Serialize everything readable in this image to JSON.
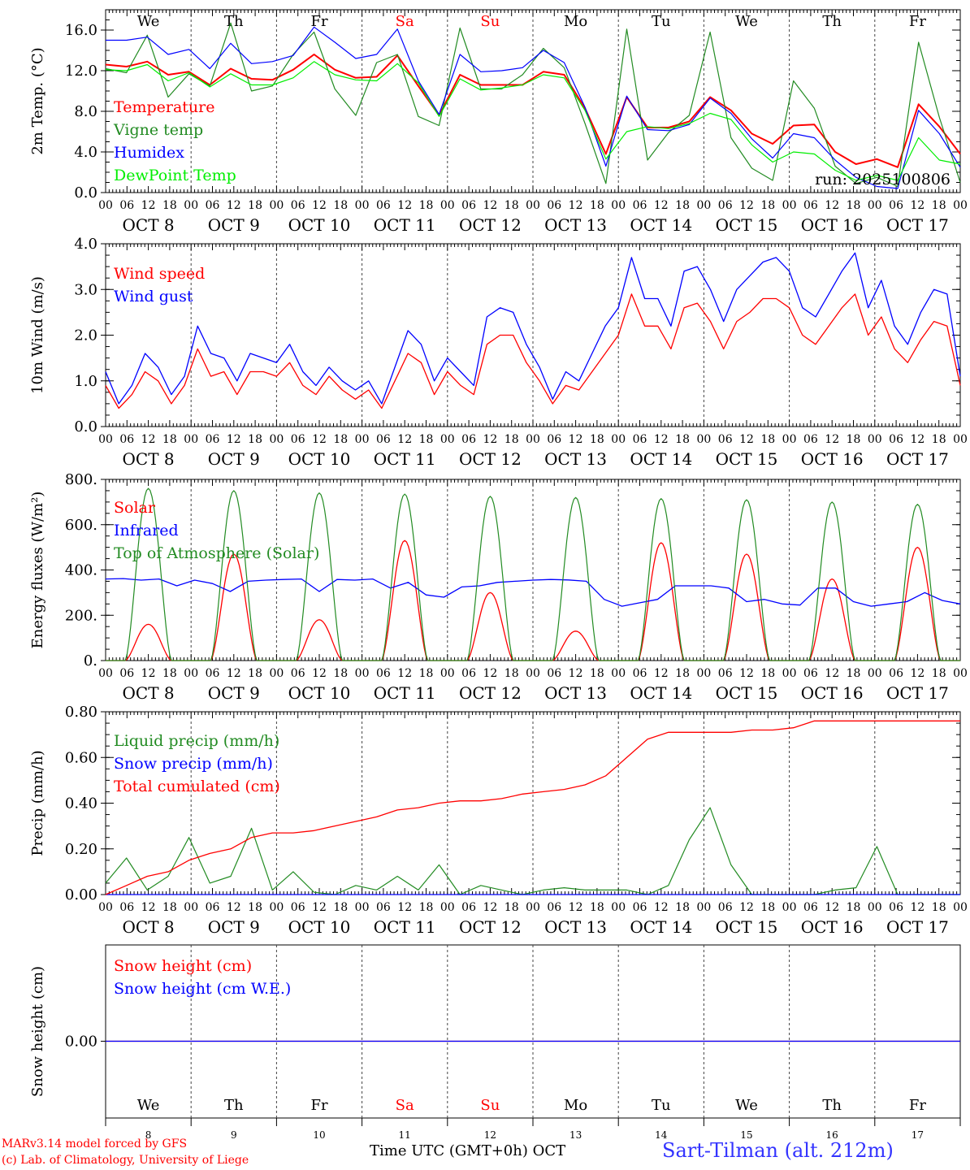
{
  "chart_data": [
    {
      "type": "line",
      "ylabel": "2m Temp. (°C)",
      "ylim": [
        0,
        18
      ],
      "yticks": [
        0.0,
        4.0,
        8.0,
        12.0,
        16.0
      ],
      "ytick_labels": [
        "0.0",
        "4.0",
        "8.0",
        "12.0",
        "16.0"
      ],
      "day_labels": [
        "We",
        "Th",
        "Fr",
        "Sa",
        "Su",
        "Mo",
        "Tu",
        "We",
        "Th",
        "Fr"
      ],
      "day_label_colors": [
        "#000000",
        "#000000",
        "#000000",
        "#ff0000",
        "#ff0000",
        "#000000",
        "#000000",
        "#000000",
        "#000000",
        "#000000"
      ],
      "annotation": "run: 2025100806",
      "legend_position": "top-left",
      "x_step_hours": 6,
      "series": [
        {
          "name": "Temperature",
          "color": "#ff0000",
          "values": [
            12.6,
            12.4,
            12.9,
            11.6,
            11.9,
            10.6,
            12.2,
            11.2,
            11.1,
            12.1,
            13.6,
            12.1,
            11.3,
            11.4,
            13.5,
            10.5,
            7.6,
            11.6,
            10.6,
            10.6,
            10.6,
            11.9,
            11.6,
            8.3,
            3.8,
            9.4,
            6.4,
            6.4,
            7.0,
            9.4,
            8.1,
            5.8,
            4.8,
            6.6,
            6.7,
            4.0,
            2.8,
            3.3,
            2.5,
            8.7,
            6.5,
            3.8
          ]
        },
        {
          "name": "Vigne temp",
          "color": "#228b22",
          "values": [
            12.2,
            11.8,
            15.5,
            9.4,
            11.7,
            10.5,
            16.7,
            10.0,
            10.5,
            13.6,
            15.8,
            10.2,
            7.6,
            12.8,
            13.6,
            7.5,
            6.6,
            16.2,
            10.2,
            10.2,
            11.6,
            14.2,
            12.3,
            6.8,
            0.9,
            16.1,
            3.2,
            5.9,
            7.6,
            15.8,
            5.4,
            2.4,
            1.2,
            11.0,
            8.3,
            2.6,
            0.9,
            1.5,
            0.6,
            14.8,
            7.4,
            1.0
          ]
        },
        {
          "name": "Humidex",
          "color": "#0000ff",
          "values": [
            15.0,
            15.0,
            15.3,
            13.6,
            14.1,
            12.2,
            14.7,
            12.7,
            12.9,
            13.5,
            16.3,
            14.8,
            13.2,
            13.6,
            16.1,
            11.0,
            7.7,
            13.6,
            11.9,
            12.0,
            12.3,
            14.0,
            12.8,
            8.4,
            2.6,
            9.5,
            6.2,
            6.1,
            6.7,
            9.3,
            7.8,
            5.3,
            3.4,
            5.8,
            5.4,
            3.2,
            1.5,
            0.6,
            0.4,
            8.1,
            5.8,
            2.5
          ]
        },
        {
          "name": "DewPoint Temp",
          "color": "#00ee00",
          "values": [
            12.1,
            12.0,
            12.6,
            11.0,
            11.8,
            10.4,
            11.7,
            10.6,
            10.6,
            11.3,
            12.9,
            11.6,
            11.1,
            11.0,
            12.7,
            10.8,
            7.5,
            11.2,
            10.1,
            10.3,
            10.6,
            11.6,
            11.3,
            8.1,
            3.3,
            6.0,
            6.5,
            6.3,
            6.8,
            7.8,
            7.2,
            4.7,
            3.0,
            4.0,
            3.8,
            2.2,
            1.2,
            1.7,
            1.2,
            5.4,
            3.2,
            2.8
          ]
        }
      ]
    },
    {
      "type": "line",
      "ylabel": "10m Wind (m/s)",
      "ylim": [
        0,
        4
      ],
      "yticks": [
        0,
        1,
        2,
        3,
        4
      ],
      "ytick_labels": [
        "0.0",
        "1.0",
        "2.0",
        "3.0",
        "4.0"
      ],
      "legend_position": "top-left",
      "x_step_hours": 6,
      "series": [
        {
          "name": "Wind speed",
          "color": "#ff0000",
          "values": [
            0.9,
            0.4,
            0.7,
            1.2,
            1.0,
            0.5,
            0.9,
            1.7,
            1.1,
            1.2,
            0.7,
            1.2,
            1.2,
            1.1,
            1.4,
            0.9,
            0.7,
            1.1,
            0.8,
            0.6,
            0.8,
            0.4,
            1.0,
            1.6,
            1.4,
            0.7,
            1.2,
            0.9,
            0.7,
            1.8,
            2.0,
            2.0,
            1.4,
            1.0,
            0.5,
            0.9,
            0.8,
            1.2,
            1.6,
            2.0,
            2.9,
            2.2,
            2.2,
            1.7,
            2.6,
            2.7,
            2.3,
            1.7,
            2.3,
            2.5,
            2.8,
            2.8,
            2.6,
            2.0,
            1.8,
            2.2,
            2.6,
            2.9,
            2.0,
            2.4,
            1.7,
            1.4,
            1.9,
            2.3,
            2.2,
            0.9
          ]
        },
        {
          "name": "Wind gust",
          "color": "#0000ff",
          "values": [
            1.2,
            0.5,
            0.9,
            1.6,
            1.3,
            0.7,
            1.1,
            2.2,
            1.6,
            1.5,
            1.0,
            1.6,
            1.5,
            1.4,
            1.8,
            1.2,
            0.9,
            1.3,
            1.0,
            0.8,
            1.0,
            0.5,
            1.3,
            2.1,
            1.8,
            1.0,
            1.5,
            1.2,
            0.9,
            2.4,
            2.6,
            2.5,
            1.8,
            1.3,
            0.6,
            1.2,
            1.0,
            1.6,
            2.2,
            2.6,
            3.7,
            2.8,
            2.8,
            2.2,
            3.4,
            3.5,
            3.0,
            2.3,
            3.0,
            3.3,
            3.6,
            3.7,
            3.4,
            2.6,
            2.4,
            2.9,
            3.4,
            3.8,
            2.6,
            3.2,
            2.2,
            1.8,
            2.5,
            3.0,
            2.9,
            1.1
          ]
        }
      ]
    },
    {
      "type": "line",
      "ylabel": "Energy fluxes (W/m²)",
      "ylim": [
        0,
        800
      ],
      "yticks": [
        0,
        200,
        400,
        600,
        800
      ],
      "ytick_labels": [
        "0.",
        "200.",
        "400.",
        "600.",
        "800."
      ],
      "legend_position": "top-left",
      "series": [
        {
          "name": "Solar",
          "color": "#ff0000",
          "kind": "daily",
          "peaks": [
            160,
            470,
            180,
            530,
            300,
            130,
            520,
            470,
            360,
            500
          ]
        },
        {
          "name": "Infrared",
          "color": "#0000ff",
          "values": [
            360,
            362,
            355,
            360,
            330,
            355,
            340,
            305,
            350,
            355,
            358,
            360,
            305,
            358,
            355,
            360,
            320,
            345,
            290,
            280,
            325,
            330,
            345,
            350,
            355,
            358,
            356,
            350,
            270,
            240,
            255,
            270,
            330,
            330,
            330,
            320,
            260,
            270,
            250,
            245,
            320,
            320,
            260,
            240,
            250,
            260,
            300,
            265,
            250
          ]
        },
        {
          "name": "Top of Atmosphere (Solar)",
          "color": "#228b22",
          "kind": "daily",
          "peaks": [
            760,
            750,
            740,
            735,
            725,
            720,
            715,
            710,
            700,
            690
          ]
        }
      ]
    },
    {
      "type": "line",
      "ylabel": "Precip (mm/h)",
      "ylim": [
        0,
        0.8
      ],
      "yticks": [
        0,
        0.2,
        0.4,
        0.6,
        0.8
      ],
      "ytick_labels": [
        "0.00",
        "0.20",
        "0.40",
        "0.60",
        "0.80"
      ],
      "legend_position": "top-left",
      "x_step_hours": 6,
      "series": [
        {
          "name": "Liquid precip (mm/h)",
          "color": "#228b22",
          "values": [
            0.05,
            0.16,
            0.02,
            0.08,
            0.25,
            0.05,
            0.08,
            0.29,
            0.02,
            0.1,
            0.01,
            0.0,
            0.04,
            0.02,
            0.08,
            0.02,
            0.13,
            0.0,
            0.04,
            0.02,
            0.0,
            0.02,
            0.03,
            0.02,
            0.02,
            0.02,
            0.0,
            0.04,
            0.24,
            0.38,
            0.13,
            0.0,
            0.0,
            0.0,
            0.0,
            0.02,
            0.03,
            0.21,
            0.0,
            0.0,
            0.0,
            0.0
          ]
        },
        {
          "name": "Snow precip (mm/h)",
          "color": "#0000ff",
          "values": [
            0,
            0
          ]
        },
        {
          "name": "Total cumulated (cm)",
          "color": "#ff0000",
          "values": [
            0.0,
            0.04,
            0.08,
            0.1,
            0.15,
            0.18,
            0.2,
            0.25,
            0.27,
            0.27,
            0.28,
            0.3,
            0.32,
            0.34,
            0.37,
            0.38,
            0.4,
            0.41,
            0.41,
            0.42,
            0.44,
            0.45,
            0.46,
            0.48,
            0.52,
            0.6,
            0.68,
            0.71,
            0.71,
            0.71,
            0.71,
            0.72,
            0.72,
            0.73,
            0.76,
            0.76,
            0.76,
            0.76,
            0.76,
            0.76,
            0.76,
            0.76
          ]
        }
      ]
    },
    {
      "type": "line",
      "ylabel": "Snow height (cm)",
      "yticks": [
        0.0
      ],
      "ytick_labels": [
        "0.00"
      ],
      "legend_position": "top-left",
      "day_labels": [
        "We",
        "Th",
        "Fr",
        "Sa",
        "Su",
        "Mo",
        "Tu",
        "We",
        "Th",
        "Fr"
      ],
      "day_label_colors": [
        "#000000",
        "#000000",
        "#000000",
        "#ff0000",
        "#ff0000",
        "#000000",
        "#000000",
        "#000000",
        "#000000",
        "#000000"
      ],
      "day_numbers": [
        "8",
        "9",
        "10",
        "11",
        "12",
        "13",
        "14",
        "15",
        "16",
        "17"
      ],
      "series": [
        {
          "name": "Snow height (cm)",
          "color": "#ff0000",
          "values": [
            0,
            0
          ]
        },
        {
          "name": "Snow height (cm W.E.)",
          "color": "#0000ff",
          "values": [
            0,
            0
          ]
        }
      ]
    }
  ],
  "hour_tick_labels": [
    "00",
    "06",
    "12",
    "18"
  ],
  "date_labels": [
    "OCT  8",
    "OCT  9",
    "OCT 10",
    "OCT 11",
    "OCT 12",
    "OCT 13",
    "OCT 14",
    "OCT 15",
    "OCT 16",
    "OCT 17"
  ],
  "footer": {
    "model_line": "MARv3.14 model forced by GFS",
    "credit_line": "(c) Lab. of Climatology, University of Liege",
    "x_title": "Time UTC (GMT+0h) OCT",
    "station": "Sart-Tilman (alt. 212m)"
  }
}
